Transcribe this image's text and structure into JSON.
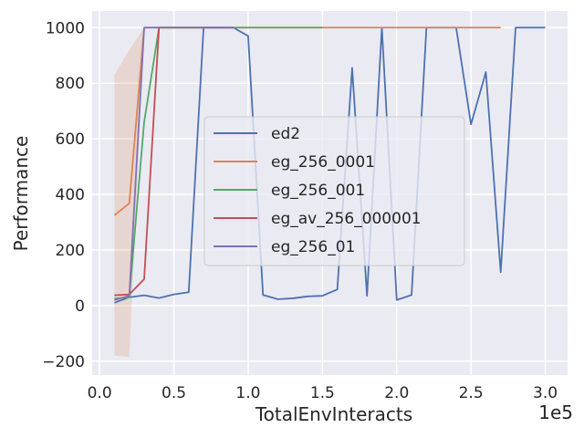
{
  "chart_data": {
    "type": "line",
    "xlabel": "TotalEnvInteracts",
    "ylabel": "Performance",
    "x_offset_label": "1e5",
    "xlim": [
      -5000,
      315000
    ],
    "ylim": [
      -250,
      1060
    ],
    "xticks": [
      0,
      50000,
      100000,
      150000,
      200000,
      250000,
      300000
    ],
    "xtick_labels": [
      "0.0",
      "0.5",
      "1.0",
      "1.5",
      "2.0",
      "2.5",
      "3.0"
    ],
    "yticks": [
      -200,
      0,
      200,
      400,
      600,
      800,
      1000
    ],
    "ytick_labels": [
      "−200",
      "0",
      "200",
      "400",
      "600",
      "800",
      "1000"
    ],
    "grid": true,
    "legend_position": "center",
    "series": [
      {
        "name": "ed2",
        "color": "#4c72b0",
        "x": [
          10000,
          20000,
          30000,
          40000,
          50000,
          60000,
          70000,
          80000,
          90000,
          100000,
          110000,
          120000,
          130000,
          140000,
          150000,
          160000,
          170000,
          180000,
          190000,
          200000,
          210000,
          220000,
          230000,
          240000,
          250000,
          260000,
          270000,
          280000,
          290000,
          300000
        ],
        "y": [
          10,
          30,
          37,
          27,
          40,
          48,
          1000,
          1000,
          1000,
          970,
          38,
          23,
          26,
          33,
          35,
          58,
          855,
          35,
          1000,
          20,
          38,
          1000,
          1000,
          1000,
          652,
          840,
          120,
          1000,
          1000,
          1000
        ]
      },
      {
        "name": "eg_256_0001",
        "color": "#dd8452",
        "x": [
          10000,
          20000,
          30000,
          40000,
          50000,
          60000,
          70000,
          80000,
          90000,
          100000,
          110000,
          120000,
          130000,
          140000,
          150000,
          160000,
          170000,
          180000,
          190000,
          200000,
          210000,
          220000,
          230000,
          240000,
          250000,
          260000,
          270000
        ],
        "y": [
          325,
          368,
          1000,
          1000,
          1000,
          1000,
          1000,
          1000,
          1000,
          1000,
          1000,
          1000,
          1000,
          1000,
          1000,
          1000,
          1000,
          1000,
          1000,
          1000,
          1000,
          1000,
          1000,
          1000,
          1000,
          1000,
          1000
        ],
        "band_x": [
          10000,
          20000,
          30000
        ],
        "band_lower": [
          -180,
          -185,
          1000
        ],
        "band_upper": [
          830,
          920,
          1000
        ]
      },
      {
        "name": "eg_256_001",
        "color": "#55a868",
        "x": [
          10000,
          20000,
          30000,
          40000,
          50000,
          60000,
          70000,
          80000,
          90000,
          100000,
          110000,
          120000,
          130000,
          140000,
          150000
        ],
        "y": [
          25,
          30,
          660,
          1000,
          1000,
          1000,
          1000,
          1000,
          1000,
          1000,
          1000,
          1000,
          1000,
          1000,
          1000
        ]
      },
      {
        "name": "eg_av_256_000001",
        "color": "#c44e52",
        "x": [
          10000,
          20000,
          30000,
          40000,
          50000,
          60000,
          70000,
          80000,
          90000
        ],
        "y": [
          37,
          40,
          95,
          1000,
          1000,
          1000,
          1000,
          1000,
          1000
        ]
      },
      {
        "name": "eg_256_01",
        "color": "#8172b3",
        "x": [
          10000,
          20000,
          30000,
          40000,
          50000,
          60000,
          70000,
          80000,
          90000
        ],
        "y": [
          20,
          35,
          1000,
          1000,
          1000,
          1000,
          1000,
          1000,
          1000
        ]
      }
    ]
  }
}
